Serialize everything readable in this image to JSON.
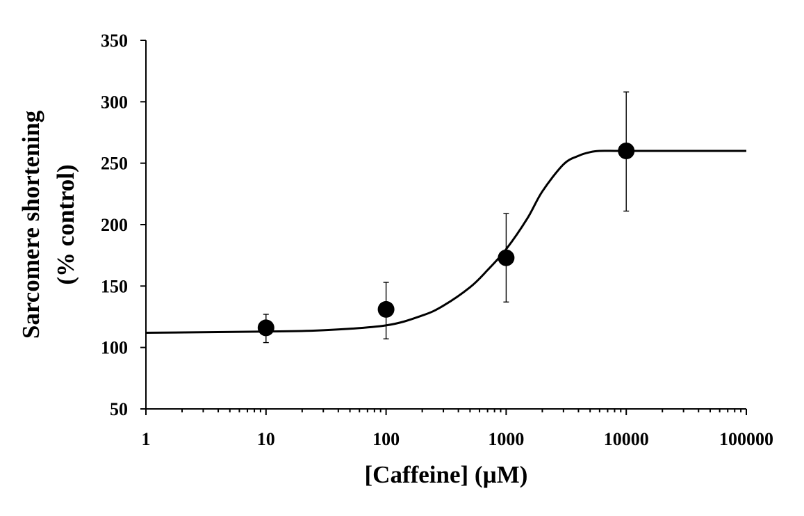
{
  "chart_data": {
    "type": "scatter",
    "title": "",
    "xlabel": "[Caffeine] (µM)",
    "ylabel_lines": [
      "Sarcomere shortening",
      "(% control)"
    ],
    "x_scale": "log",
    "xlim": [
      1,
      100000
    ],
    "ylim": [
      50,
      350
    ],
    "x_ticks": [
      "1",
      "10",
      "100",
      "1000",
      "10000",
      "100000"
    ],
    "y_ticks": [
      "50",
      "100",
      "150",
      "200",
      "250",
      "300",
      "350"
    ],
    "grid": false,
    "legend": "none",
    "points": [
      {
        "x": 10,
        "y": 116,
        "err_low": 104,
        "err_high": 127
      },
      {
        "x": 100,
        "y": 131,
        "err_low": 107,
        "err_high": 153
      },
      {
        "x": 1000,
        "y": 173,
        "err_low": 137,
        "err_high": 209
      },
      {
        "x": 10000,
        "y": 260,
        "err_low": 211,
        "err_high": 308
      }
    ],
    "fit_curve": {
      "type": "sigmoid",
      "x": [
        1,
        10,
        30,
        100,
        200,
        300,
        500,
        700,
        1000,
        1500,
        2000,
        3000,
        4000,
        5000,
        6000,
        8000,
        10000,
        100000
      ],
      "y": [
        112,
        113,
        114,
        118,
        126,
        134,
        149,
        163,
        180,
        205,
        227,
        249,
        256,
        259,
        260,
        260,
        260,
        260
      ]
    },
    "colors": {
      "axis": "#000000",
      "marker": "#000000",
      "curve": "#000000"
    }
  }
}
